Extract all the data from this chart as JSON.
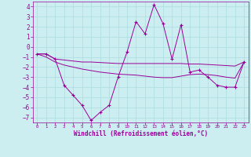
{
  "x": [
    0,
    1,
    2,
    3,
    4,
    5,
    6,
    7,
    8,
    9,
    10,
    11,
    12,
    13,
    14,
    15,
    16,
    17,
    18,
    19,
    20,
    21,
    22,
    23
  ],
  "y_main": [
    -0.7,
    -0.7,
    -1.2,
    -3.8,
    -4.8,
    -5.8,
    -7.3,
    -6.5,
    -5.8,
    -3.0,
    -0.5,
    2.5,
    1.3,
    4.2,
    2.3,
    -1.2,
    2.2,
    -2.5,
    -2.3,
    -3.0,
    -3.8,
    -4.0,
    -4.0,
    -1.5
  ],
  "y_line1": [
    -0.7,
    -0.7,
    -1.2,
    -1.3,
    -1.4,
    -1.5,
    -1.5,
    -1.55,
    -1.6,
    -1.65,
    -1.65,
    -1.65,
    -1.65,
    -1.65,
    -1.65,
    -1.65,
    -1.65,
    -1.7,
    -1.7,
    -1.75,
    -1.8,
    -1.85,
    -1.9,
    -1.5
  ],
  "y_line2": [
    -0.7,
    -1.0,
    -1.5,
    -1.8,
    -2.0,
    -2.2,
    -2.35,
    -2.5,
    -2.6,
    -2.7,
    -2.75,
    -2.8,
    -2.9,
    -3.0,
    -3.05,
    -3.05,
    -2.9,
    -2.75,
    -2.7,
    -2.75,
    -2.85,
    -3.0,
    -3.1,
    -1.5
  ],
  "bg_color": "#cceef0",
  "line_color": "#990099",
  "grid_color": "#aadde0",
  "xlabel": "Windchill (Refroidissement éolien,°C)",
  "xlim": [
    -0.5,
    23.5
  ],
  "ylim": [
    -7.5,
    4.5
  ],
  "xticks": [
    0,
    1,
    2,
    3,
    4,
    5,
    6,
    7,
    8,
    9,
    10,
    11,
    12,
    13,
    14,
    15,
    16,
    17,
    18,
    19,
    20,
    21,
    22,
    23
  ],
  "yticks": [
    -7,
    -6,
    -5,
    -4,
    -3,
    -2,
    -1,
    0,
    1,
    2,
    3,
    4
  ]
}
